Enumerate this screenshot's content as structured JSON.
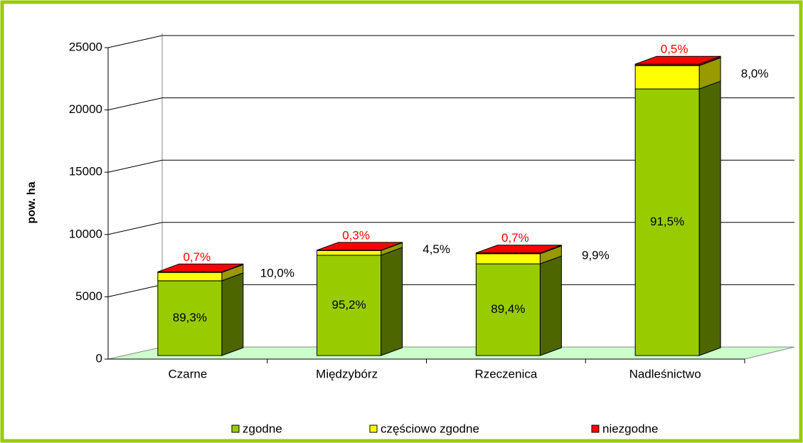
{
  "chart_data": {
    "type": "bar3d_stacked",
    "y_label": "pow. ha",
    "categories": [
      "Czarne",
      "Międzybórz",
      "Rzeczenica",
      "Nadleśnictwo"
    ],
    "series": [
      {
        "name": "zgodne",
        "color": "#99cc00",
        "side": "#4d6600",
        "values": [
          6000,
          8050,
          7360,
          21400
        ],
        "data_labels": [
          "89,3%",
          "95,2%",
          "89,4%",
          "91,5%"
        ]
      },
      {
        "name": "częściowo zgodne",
        "color": "#ffff00",
        "side": "#999900",
        "values": [
          672,
          380,
          815,
          1870
        ],
        "data_labels": [
          "10,0%",
          "4,5%",
          "9,9%",
          "8,0%"
        ]
      },
      {
        "name": "niezgodne",
        "color": "#ff0000",
        "side": "#990000",
        "values": [
          47,
          25,
          58,
          117
        ],
        "data_labels": [
          "0,7%",
          "0,3%",
          "0,7%",
          "0,5%"
        ]
      }
    ],
    "ylim": [
      0,
      25000
    ],
    "yticks": [
      0,
      5000,
      10000,
      15000,
      20000,
      25000
    ],
    "grid": true,
    "legend": "bottom"
  }
}
